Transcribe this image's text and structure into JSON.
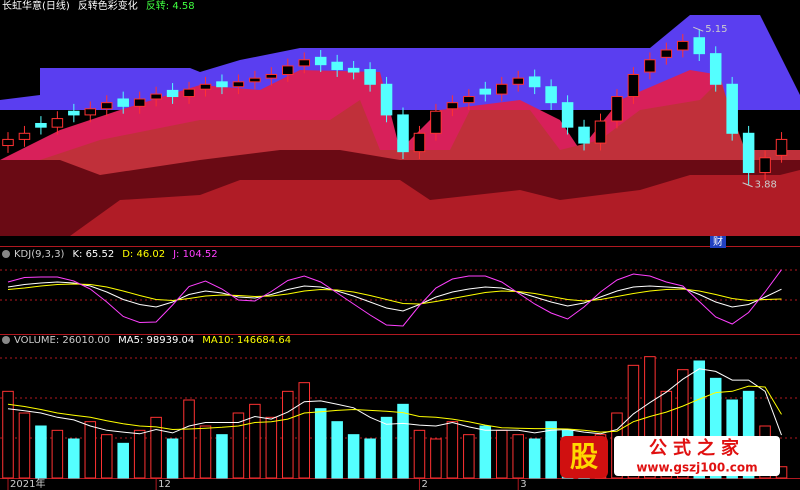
{
  "chart_data": [
    {
      "type": "candlestick",
      "headers": [
        "长虹华意(日线)",
        "反转色彩变化",
        "反转: 4.58"
      ],
      "categories": [
        "2021年",
        null,
        null,
        null,
        null,
        null,
        null,
        null,
        null,
        "12",
        null,
        null,
        null,
        null,
        null,
        null,
        null,
        null,
        null,
        null,
        null,
        null,
        null,
        null,
        null,
        "2",
        null,
        null,
        null,
        null,
        null,
        "3",
        null,
        null,
        null,
        null,
        null,
        null,
        null,
        null,
        null,
        null,
        null,
        null,
        null,
        null,
        null,
        null
      ],
      "open": [
        4.2,
        4.25,
        4.38,
        4.35,
        4.48,
        4.45,
        4.5,
        4.58,
        4.52,
        4.58,
        4.65,
        4.6,
        4.66,
        4.72,
        4.68,
        4.72,
        4.75,
        4.78,
        4.85,
        4.92,
        4.88,
        4.83,
        4.82,
        4.7,
        4.45,
        4.15,
        4.3,
        4.5,
        4.55,
        4.66,
        4.62,
        4.7,
        4.76,
        4.68,
        4.55,
        4.35,
        4.22,
        4.4,
        4.6,
        4.8,
        4.92,
        4.98,
        5.08,
        4.95,
        4.7,
        4.3,
        3.98,
        4.12
      ],
      "high": [
        4.31,
        4.36,
        4.44,
        4.48,
        4.54,
        4.56,
        4.61,
        4.64,
        4.64,
        4.68,
        4.71,
        4.72,
        4.76,
        4.78,
        4.78,
        4.81,
        4.84,
        4.91,
        4.96,
        4.98,
        4.94,
        4.89,
        4.88,
        4.76,
        4.51,
        4.36,
        4.54,
        4.61,
        4.66,
        4.72,
        4.76,
        4.81,
        4.82,
        4.74,
        4.61,
        4.41,
        4.46,
        4.66,
        4.84,
        4.96,
        5.04,
        5.11,
        5.15,
        5.01,
        4.76,
        4.36,
        4.16,
        4.31
      ],
      "low": [
        4.14,
        4.19,
        4.29,
        4.29,
        4.39,
        4.39,
        4.44,
        4.46,
        4.46,
        4.52,
        4.54,
        4.54,
        4.6,
        4.62,
        4.62,
        4.66,
        4.69,
        4.72,
        4.79,
        4.8,
        4.76,
        4.74,
        4.64,
        4.39,
        4.09,
        4.09,
        4.24,
        4.44,
        4.49,
        4.56,
        4.56,
        4.64,
        4.62,
        4.49,
        4.29,
        4.16,
        4.16,
        4.34,
        4.54,
        4.74,
        4.86,
        4.92,
        4.89,
        4.64,
        4.24,
        3.88,
        3.92,
        4.06
      ],
      "close": [
        4.25,
        4.3,
        4.35,
        4.42,
        4.45,
        4.5,
        4.55,
        4.52,
        4.58,
        4.62,
        4.6,
        4.66,
        4.7,
        4.68,
        4.72,
        4.75,
        4.78,
        4.85,
        4.9,
        4.86,
        4.82,
        4.8,
        4.7,
        4.45,
        4.15,
        4.3,
        4.48,
        4.55,
        4.6,
        4.62,
        4.7,
        4.75,
        4.68,
        4.55,
        4.35,
        4.22,
        4.4,
        4.6,
        4.78,
        4.9,
        4.98,
        5.05,
        4.95,
        4.7,
        4.3,
        3.98,
        4.1,
        4.25
      ],
      "up_color": "#ff3232",
      "down_color": "#54ffff",
      "annotations": [
        "5.15",
        "3.88"
      ],
      "marker": "财",
      "ylim": [
        3.38,
        5.29
      ]
    },
    {
      "type": "line",
      "headers": [
        "KDJ(9,3,3)",
        "K: 65.52",
        "D: 46.02",
        "J: 104.52"
      ],
      "series": [
        {
          "name": "K",
          "color": "#ffffff",
          "values": [
            70,
            75,
            78,
            80,
            78,
            72,
            60,
            45,
            35,
            30,
            40,
            55,
            62,
            58,
            50,
            48,
            55,
            65,
            72,
            70,
            62,
            52,
            40,
            28,
            22,
            35,
            50,
            60,
            66,
            70,
            68,
            60,
            50,
            40,
            32,
            38,
            50,
            62,
            70,
            72,
            70,
            68,
            55,
            40,
            30,
            35,
            50,
            65.52
          ]
        },
        {
          "name": "D",
          "color": "#ffff00",
          "values": [
            65,
            68,
            72,
            75,
            76,
            75,
            70,
            62,
            53,
            45,
            43,
            47,
            52,
            54,
            53,
            51,
            52,
            56,
            62,
            65,
            64,
            60,
            53,
            45,
            37,
            36,
            41,
            47,
            53,
            59,
            62,
            61,
            57,
            51,
            45,
            42,
            45,
            51,
            57,
            62,
            65,
            66,
            62,
            55,
            47,
            43,
            45,
            46.02
          ]
        },
        {
          "name": "J",
          "color": "#ff40ff",
          "values": [
            80,
            89,
            90,
            90,
            82,
            66,
            40,
            11,
            -1,
            0,
            34,
            71,
            82,
            66,
            44,
            42,
            61,
            83,
            92,
            80,
            58,
            36,
            14,
            -6,
            -8,
            33,
            68,
            86,
            92,
            92,
            80,
            58,
            36,
            18,
            6,
            30,
            60,
            84,
            96,
            92,
            80,
            72,
            41,
            10,
            -4,
            19,
            60,
            104.52
          ]
        }
      ],
      "ylim": [
        -20,
        120
      ]
    },
    {
      "type": "volume",
      "headers": [
        "VOLUME: 26010.00",
        "MA5: 98939.04",
        "MA10: 146684.64"
      ],
      "values": [
        200000,
        150000,
        120000,
        110000,
        90000,
        130000,
        100000,
        80000,
        110000,
        140000,
        90000,
        180000,
        120000,
        100000,
        150000,
        170000,
        140000,
        200000,
        220000,
        160000,
        130000,
        100000,
        90000,
        140000,
        170000,
        110000,
        90000,
        130000,
        100000,
        120000,
        110000,
        100000,
        90000,
        130000,
        110000,
        80000,
        100000,
        150000,
        260000,
        280000,
        200000,
        250000,
        270000,
        230000,
        180000,
        200000,
        120000,
        26010
      ],
      "series": [
        {
          "name": "MA5",
          "color": "#ffffff",
          "values": [
            160000,
            155000,
            150000,
            140000,
            134000,
            120000,
            110000,
            106000,
            102000,
            112000,
            104000,
            120000,
            128000,
            128000,
            128000,
            142000,
            136000,
            152000,
            176000,
            178000,
            170000,
            162000,
            140000,
            124000,
            126000,
            122000,
            120000,
            128000,
            118000,
            110000,
            110000,
            110000,
            104000,
            110000,
            112000,
            106000,
            102000,
            112000,
            148000,
            174000,
            198000,
            228000,
            252000,
            246000,
            226000,
            226000,
            200000,
            98939.04
          ]
        },
        {
          "name": "MA10",
          "color": "#ffff00",
          "values": [
            170000,
            165000,
            158000,
            150000,
            145000,
            140000,
            132000,
            125000,
            120000,
            118000,
            112000,
            113000,
            115000,
            117000,
            120000,
            128000,
            130000,
            136000,
            150000,
            153000,
            156000,
            158000,
            156000,
            154000,
            151000,
            142000,
            140000,
            136000,
            130000,
            122000,
            116000,
            115000,
            114000,
            114000,
            113000,
            110000,
            106000,
            108000,
            130000,
            142000,
            152000,
            166000,
            182000,
            197000,
            200000,
            212000,
            210000,
            146684.64
          ]
        }
      ],
      "ylim": [
        0,
        300000
      ]
    }
  ],
  "watermark": {
    "logo": "股",
    "name": "公式之家",
    "url": "www.gszj100.com"
  }
}
